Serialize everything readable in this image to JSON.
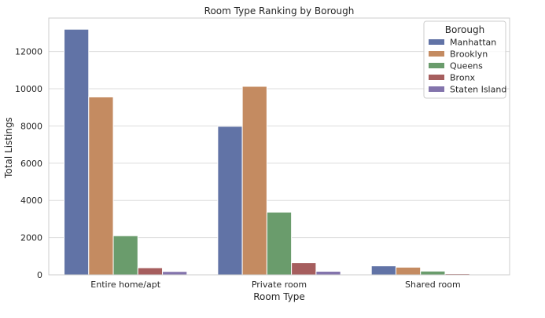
{
  "chart_data": {
    "type": "bar",
    "title": "Room Type Ranking by Borough",
    "xlabel": "Room Type",
    "ylabel": "Total Listings",
    "categories": [
      "Entire home/apt",
      "Private room",
      "Shared room"
    ],
    "ylim": [
      0,
      13800
    ],
    "yticks": [
      0,
      2000,
      4000,
      6000,
      8000,
      10000,
      12000
    ],
    "grid": true,
    "legend": {
      "title": "Borough",
      "placement": "top-right"
    },
    "series": [
      {
        "name": "Manhattan",
        "color": "#6173a6",
        "values": [
          13200,
          7980,
          480
        ]
      },
      {
        "name": "Brooklyn",
        "color": "#c48b61",
        "values": [
          9560,
          10130,
          410
        ]
      },
      {
        "name": "Queens",
        "color": "#6a9c6c",
        "values": [
          2100,
          3370,
          200
        ]
      },
      {
        "name": "Bronx",
        "color": "#a65e5e",
        "values": [
          380,
          650,
          60
        ]
      },
      {
        "name": "Staten Island",
        "color": "#8374ac",
        "values": [
          180,
          190,
          10
        ]
      }
    ]
  }
}
